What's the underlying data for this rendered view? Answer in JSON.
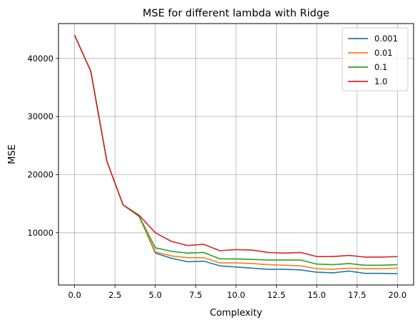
{
  "chart_data": {
    "type": "line",
    "title": "MSE for different lambda with Ridge",
    "xlabel": "Complexity",
    "ylabel": "MSE",
    "xlim": [
      -1.0,
      21.0
    ],
    "ylim": [
      1000,
      46000
    ],
    "xticks": [
      0.0,
      2.5,
      5.0,
      7.5,
      10.0,
      12.5,
      15.0,
      17.5,
      20.0
    ],
    "xtick_labels": [
      "0.0",
      "2.5",
      "5.0",
      "7.5",
      "10.0",
      "12.5",
      "15.0",
      "17.5",
      "20.0"
    ],
    "yticks": [
      10000,
      20000,
      30000,
      40000
    ],
    "ytick_labels": [
      "10000",
      "20000",
      "30000",
      "40000"
    ],
    "grid": true,
    "legend_position": "top-right",
    "x": [
      0,
      1,
      2,
      3,
      4,
      5,
      6,
      7,
      8,
      9,
      10,
      11,
      12,
      13,
      14,
      15,
      16,
      17,
      18,
      19,
      20
    ],
    "series": [
      {
        "name": "0.001",
        "color": "#1f77b4",
        "values": [
          44000,
          37800,
          22300,
          14800,
          12800,
          6500,
          5600,
          5000,
          5100,
          4300,
          4100,
          3900,
          3700,
          3700,
          3600,
          3200,
          3100,
          3400,
          3000,
          3000,
          2950
        ]
      },
      {
        "name": "0.01",
        "color": "#ff7f0e",
        "values": [
          44000,
          37800,
          22300,
          14800,
          12800,
          6700,
          6000,
          5700,
          5700,
          4800,
          4800,
          4700,
          4500,
          4400,
          4300,
          3800,
          3700,
          3900,
          3800,
          3800,
          3900
        ]
      },
      {
        "name": "0.1",
        "color": "#2ca02c",
        "values": [
          44000,
          37800,
          22300,
          14800,
          12800,
          7400,
          6800,
          6500,
          6600,
          5500,
          5500,
          5400,
          5300,
          5300,
          5300,
          4600,
          4500,
          4700,
          4400,
          4400,
          4500
        ]
      },
      {
        "name": "1.0",
        "color": "#d62728",
        "values": [
          44000,
          37800,
          22300,
          14800,
          13000,
          10000,
          8500,
          7800,
          8000,
          6900,
          7100,
          7000,
          6600,
          6500,
          6600,
          5900,
          5900,
          6100,
          5800,
          5800,
          5900
        ]
      }
    ]
  }
}
